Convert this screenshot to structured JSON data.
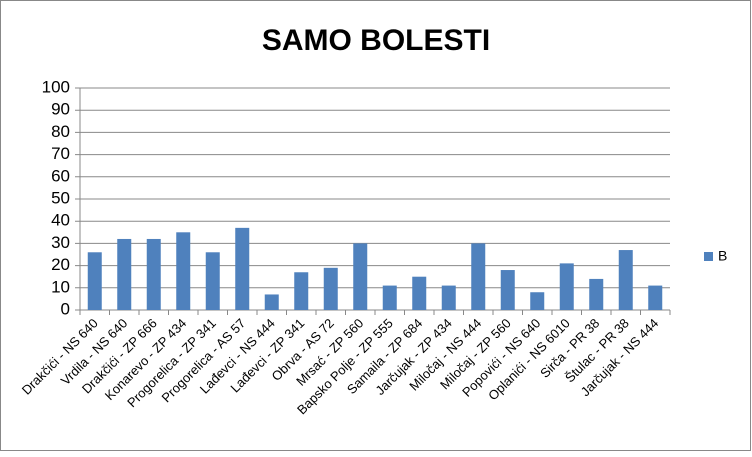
{
  "chart_data": {
    "type": "bar",
    "title": "SAMO BOLESTI",
    "categories": [
      "Drakčići - NS 640",
      "Vrdila - NS 640",
      "Drakčići - ZP 666",
      "Konarevo - ZP 434",
      "Progorelica - ZP 341",
      "Progorelica - AS 57",
      "Lađevci - NS 444",
      "Lađevci - ZP 341",
      "Obrva - AS 72",
      "Mrsać - ZP 560",
      "Bapsko Polje - ZP 555",
      "Samaila - ZP 684",
      "Jarčujak - ZP 434",
      "Miločaj - NS 444",
      "Miločaj - ZP 560",
      "Popovići - NS 640",
      "Oplanići - NS 6010",
      "Sirča - PR 38",
      "Štulac - PR 38",
      "Jarčujak - NS 444"
    ],
    "series": [
      {
        "name": "B",
        "color": "#4f81bd",
        "values": [
          26,
          32,
          32,
          35,
          26,
          37,
          7,
          17,
          19,
          30,
          11,
          15,
          11,
          30,
          18,
          8,
          21,
          14,
          27,
          11
        ]
      }
    ],
    "ylim": [
      0,
      100
    ],
    "yticks": [
      0,
      10,
      20,
      30,
      40,
      50,
      60,
      70,
      80,
      90,
      100
    ],
    "grid": true,
    "legend": "right"
  }
}
